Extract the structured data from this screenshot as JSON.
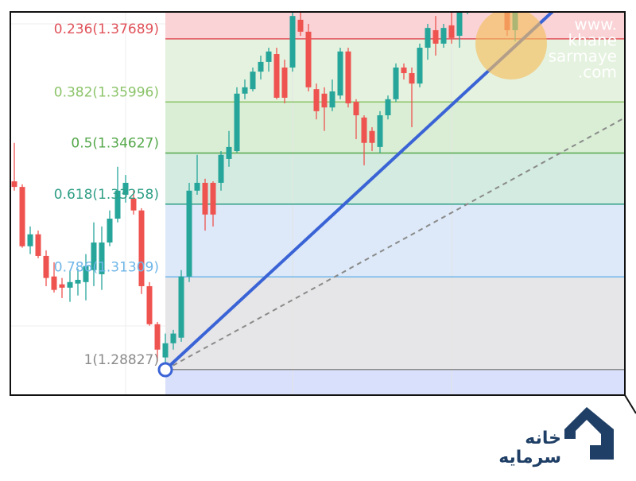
{
  "chart_data": {
    "type": "candlestick",
    "ylim": [
      1.2814,
      1.3841
    ],
    "up_color": "#26a69a",
    "down_color": "#ef5350",
    "candles": {
      "open": [
        1.3387,
        1.3372,
        1.3213,
        1.3245,
        1.3187,
        1.3132,
        1.3111,
        1.3102,
        1.3113,
        1.3117,
        1.3149,
        1.3138,
        1.3223,
        1.3287,
        1.3351,
        1.3341,
        1.3309,
        1.3106,
        1.3004,
        1.2915,
        1.2953,
        1.2968,
        1.3132,
        1.3362,
        1.3383,
        1.3383,
        1.3383,
        1.3447,
        1.3468,
        1.3622,
        1.3634,
        1.3681,
        1.3707,
        1.3728,
        1.3692,
        1.3692,
        1.382,
        1.3788,
        1.3634,
        1.3622,
        1.3585,
        1.3617,
        1.3735,
        1.36,
        1.3558,
        1.3522,
        1.3479,
        1.3564,
        1.3607,
        1.3692,
        1.3677,
        1.3649,
        1.3745,
        1.3792,
        1.3756,
        1.3805,
        1.3777,
        1.3841,
        null,
        null,
        null,
        null,
        1.3841,
        1.3792
      ],
      "high": [
        1.349,
        1.3379,
        1.3266,
        1.3255,
        1.3202,
        1.317,
        1.3128,
        1.3149,
        1.3153,
        1.3192,
        1.3277,
        1.3266,
        1.3309,
        1.3426,
        1.3404,
        1.3362,
        1.3315,
        1.3117,
        1.301,
        1.2979,
        1.2989,
        1.3149,
        1.3383,
        1.3458,
        1.3394,
        1.3387,
        1.3468,
        1.3522,
        1.3639,
        1.366,
        1.3692,
        1.3724,
        1.3745,
        1.3745,
        1.3713,
        1.3841,
        1.3841,
        1.3809,
        1.3649,
        1.3639,
        1.366,
        1.3745,
        1.3745,
        1.3607,
        1.3564,
        1.3532,
        1.3575,
        1.3617,
        1.3703,
        1.3703,
        1.3692,
        1.3756,
        1.3809,
        1.383,
        1.3809,
        1.3841,
        1.3852,
        1.3862,
        null,
        null,
        null,
        null,
        1.3852,
        1.3852
      ],
      "low": [
        1.3362,
        1.3209,
        1.3192,
        1.3181,
        1.3106,
        1.3089,
        1.3074,
        1.3064,
        1.3081,
        1.3068,
        1.3106,
        1.3096,
        1.3213,
        1.3277,
        1.333,
        1.3298,
        1.3085,
        1.3,
        1.2904,
        1.2883,
        1.2936,
        1.2957,
        1.3117,
        1.3351,
        1.3255,
        1.3266,
        1.3362,
        1.3426,
        1.3464,
        1.3607,
        1.3628,
        1.366,
        1.3681,
        1.3607,
        1.3596,
        1.3681,
        1.3777,
        1.3628,
        1.3553,
        1.3522,
        1.3575,
        1.3607,
        1.3585,
        1.35,
        1.343,
        1.3468,
        1.3464,
        1.3553,
        1.36,
        1.366,
        1.3532,
        1.3639,
        1.3713,
        1.3724,
        1.3745,
        1.3756,
        1.3745,
        1.3835,
        null,
        null,
        null,
        null,
        1.3777,
        1.3762
      ],
      "close": [
        1.3372,
        1.3213,
        1.3245,
        1.3187,
        1.3128,
        1.3096,
        1.3102,
        1.3117,
        1.3123,
        1.316,
        1.3223,
        1.3223,
        1.3287,
        1.3362,
        1.3383,
        1.3309,
        1.3106,
        1.3004,
        1.2936,
        1.2953,
        1.2979,
        1.3132,
        1.3362,
        1.3383,
        1.3298,
        1.3298,
        1.3458,
        1.3479,
        1.3622,
        1.3639,
        1.3681,
        1.3707,
        1.3735,
        1.3611,
        1.3611,
        1.383,
        1.3788,
        1.3639,
        1.3575,
        1.3585,
        1.3628,
        1.3735,
        1.3596,
        1.3564,
        1.349,
        1.349,
        1.3564,
        1.3607,
        1.3692,
        1.3677,
        1.3649,
        1.3745,
        1.3798,
        1.3756,
        1.3798,
        1.3771,
        1.3841,
        1.3852,
        null,
        null,
        null,
        null,
        1.3792,
        1.3841
      ]
    },
    "fib_levels": [
      {
        "label": "0.236(1.37689)",
        "value": 1.37689,
        "color": "#e0525a"
      },
      {
        "label": "0.382(1.35996)",
        "value": 1.35996,
        "color": "#8cc46a"
      },
      {
        "label": "0.5(1.34627)",
        "value": 1.34627,
        "color": "#55a84b"
      },
      {
        "label": "0.618(1.33258)",
        "value": 1.33258,
        "color": "#2f9e86"
      },
      {
        "label": "0.786(1.31309)",
        "value": 1.31309,
        "color": "#6fb6e8"
      },
      {
        "label": "1(1.28827)",
        "value": 1.28827,
        "color": "#8a8a8a"
      }
    ],
    "zone_colors": [
      "#f9d3d6",
      "#e5f2df",
      "#d9eed5",
      "#d3ebe0",
      "#dde9f8",
      "#e6e6e8",
      "#d8e0fb"
    ],
    "watermark": [
      "www.",
      "khane",
      "sarmaye",
      ".com"
    ]
  },
  "logo": {
    "text": [
      "خانه",
      "سرمایه"
    ]
  }
}
